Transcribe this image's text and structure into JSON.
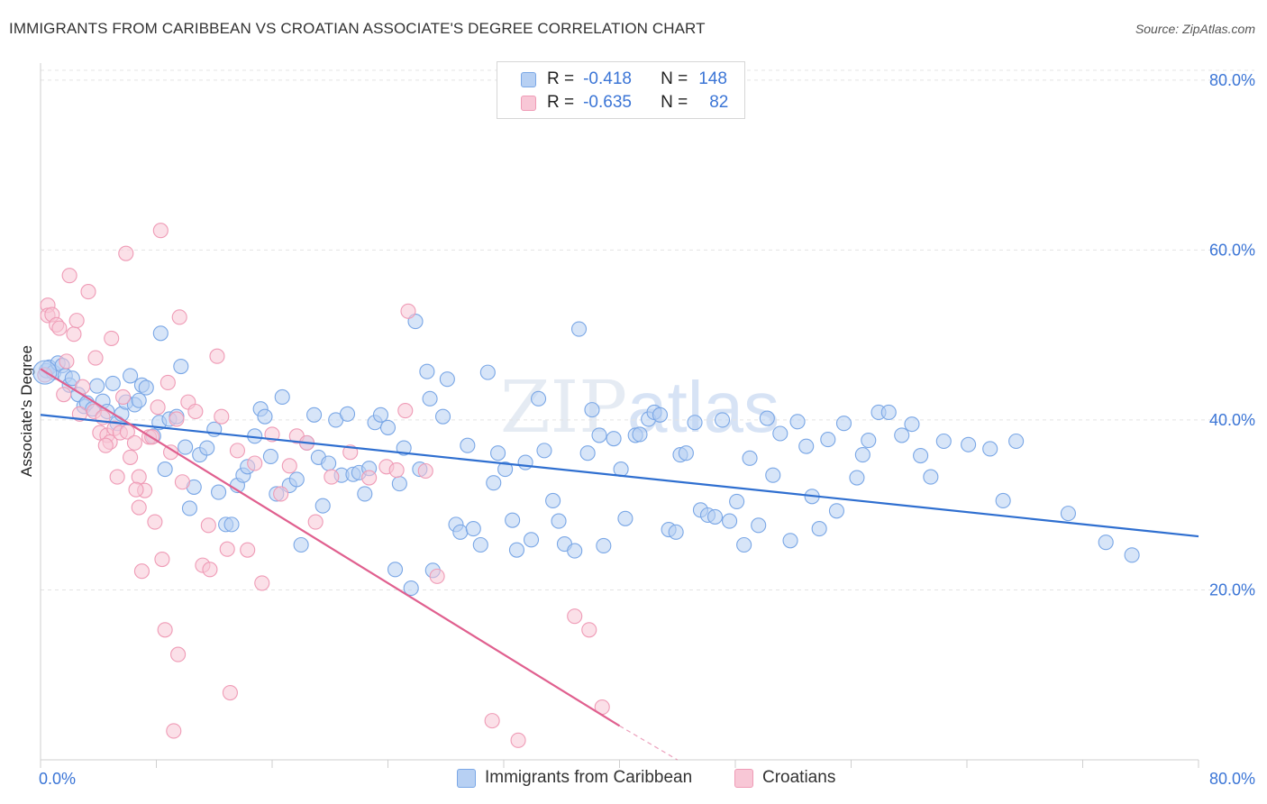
{
  "title": "IMMIGRANTS FROM CARIBBEAN VS CROATIAN ASSOCIATE'S DEGREE CORRELATION CHART",
  "source": "Source: ZipAtlas.com",
  "watermark": {
    "zip": "ZIP",
    "atlas": "atlas"
  },
  "legend": {
    "rows": [
      {
        "r_label": "R =",
        "r_value": "-0.418",
        "n_label": "N =",
        "n_value": "148"
      },
      {
        "r_label": "R =",
        "r_value": "-0.635",
        "n_label": "N =",
        "n_value": "82"
      }
    ]
  },
  "chart_data": {
    "type": "scatter",
    "title": "IMMIGRANTS FROM CARIBBEAN VS CROATIAN ASSOCIATE'S DEGREE CORRELATION CHART",
    "xlabel": "",
    "ylabel": "Associate's Degree",
    "xlim": [
      0,
      80
    ],
    "ylim": [
      0,
      82
    ],
    "x_tick_labels": [
      "0.0%",
      "80.0%"
    ],
    "y_ticks": [
      20,
      40,
      60,
      80
    ],
    "y_tick_labels": [
      "20.0%",
      "40.0%",
      "60.0%",
      "80.0%"
    ],
    "grid": true,
    "legend_position": "top-center",
    "series": [
      {
        "name": "Immigrants from Caribbean",
        "color": "#7aa7e6",
        "fill": "#b7d0f3",
        "line_color": "#2f6fd0",
        "r": -0.418,
        "n": 148,
        "trend": [
          [
            0,
            40.6
          ],
          [
            80,
            26.3
          ]
        ],
        "points": [
          [
            0.4,
            45.8
          ],
          [
            0.6,
            46.2
          ],
          [
            0.9,
            45.6
          ],
          [
            1.2,
            46.7
          ],
          [
            1.5,
            46.4
          ],
          [
            1.7,
            45.2
          ],
          [
            2.0,
            44.1
          ],
          [
            2.2,
            44.9
          ],
          [
            2.6,
            43.0
          ],
          [
            3.0,
            41.6
          ],
          [
            3.2,
            42.0
          ],
          [
            3.6,
            41.3
          ],
          [
            3.9,
            44.0
          ],
          [
            4.3,
            42.2
          ],
          [
            4.6,
            41.0
          ],
          [
            5.0,
            44.3
          ],
          [
            5.3,
            39.6
          ],
          [
            5.6,
            40.7
          ],
          [
            5.9,
            42.1
          ],
          [
            6.2,
            45.2
          ],
          [
            6.5,
            41.8
          ],
          [
            6.8,
            42.3
          ],
          [
            7.0,
            44.1
          ],
          [
            7.3,
            43.8
          ],
          [
            7.8,
            38.1
          ],
          [
            8.2,
            39.7
          ],
          [
            8.3,
            50.2
          ],
          [
            8.6,
            34.2
          ],
          [
            8.9,
            40.1
          ],
          [
            9.4,
            40.4
          ],
          [
            9.7,
            46.3
          ],
          [
            10.0,
            36.8
          ],
          [
            10.3,
            29.6
          ],
          [
            10.6,
            32.1
          ],
          [
            11.0,
            35.9
          ],
          [
            11.5,
            36.7
          ],
          [
            12.0,
            38.9
          ],
          [
            12.3,
            31.5
          ],
          [
            12.8,
            27.7
          ],
          [
            13.2,
            27.7
          ],
          [
            13.6,
            32.3
          ],
          [
            14.0,
            33.5
          ],
          [
            14.3,
            34.5
          ],
          [
            14.8,
            38.1
          ],
          [
            15.2,
            41.3
          ],
          [
            15.5,
            40.4
          ],
          [
            15.9,
            35.7
          ],
          [
            16.3,
            31.3
          ],
          [
            16.7,
            42.7
          ],
          [
            17.2,
            32.3
          ],
          [
            17.7,
            33.0
          ],
          [
            18.0,
            25.3
          ],
          [
            18.4,
            37.3
          ],
          [
            18.9,
            40.6
          ],
          [
            19.2,
            35.6
          ],
          [
            19.5,
            29.9
          ],
          [
            19.9,
            34.9
          ],
          [
            20.4,
            40.0
          ],
          [
            20.8,
            33.5
          ],
          [
            21.2,
            40.7
          ],
          [
            21.6,
            33.6
          ],
          [
            22.0,
            33.8
          ],
          [
            22.4,
            31.3
          ],
          [
            22.7,
            34.3
          ],
          [
            23.1,
            39.7
          ],
          [
            23.5,
            40.6
          ],
          [
            24.0,
            39.1
          ],
          [
            24.5,
            22.4
          ],
          [
            24.8,
            32.5
          ],
          [
            25.1,
            36.7
          ],
          [
            25.6,
            20.2
          ],
          [
            25.9,
            51.6
          ],
          [
            26.2,
            34.2
          ],
          [
            26.7,
            45.7
          ],
          [
            26.9,
            42.5
          ],
          [
            27.1,
            22.3
          ],
          [
            27.8,
            40.4
          ],
          [
            28.1,
            44.8
          ],
          [
            28.7,
            27.7
          ],
          [
            29.0,
            26.8
          ],
          [
            29.5,
            37.0
          ],
          [
            29.9,
            27.2
          ],
          [
            30.4,
            25.3
          ],
          [
            30.9,
            45.6
          ],
          [
            31.3,
            32.6
          ],
          [
            31.6,
            36.1
          ],
          [
            32.1,
            34.2
          ],
          [
            32.6,
            28.2
          ],
          [
            32.9,
            24.7
          ],
          [
            33.5,
            35.0
          ],
          [
            33.9,
            25.9
          ],
          [
            34.4,
            42.5
          ],
          [
            34.8,
            36.4
          ],
          [
            35.4,
            30.5
          ],
          [
            35.8,
            28.1
          ],
          [
            36.2,
            25.4
          ],
          [
            36.9,
            24.6
          ],
          [
            37.2,
            50.7
          ],
          [
            37.8,
            36.1
          ],
          [
            38.1,
            41.2
          ],
          [
            38.6,
            38.2
          ],
          [
            38.9,
            25.2
          ],
          [
            39.6,
            37.8
          ],
          [
            40.1,
            34.2
          ],
          [
            40.4,
            28.4
          ],
          [
            41.1,
            38.2
          ],
          [
            41.4,
            38.3
          ],
          [
            42.0,
            40.1
          ],
          [
            42.4,
            40.9
          ],
          [
            42.8,
            40.6
          ],
          [
            43.4,
            27.1
          ],
          [
            43.9,
            26.8
          ],
          [
            44.2,
            35.9
          ],
          [
            44.6,
            36.1
          ],
          [
            45.2,
            39.7
          ],
          [
            45.6,
            29.4
          ],
          [
            46.1,
            28.8
          ],
          [
            46.6,
            28.6
          ],
          [
            47.1,
            40.0
          ],
          [
            47.6,
            28.1
          ],
          [
            48.1,
            30.4
          ],
          [
            48.6,
            25.3
          ],
          [
            49.0,
            35.5
          ],
          [
            49.6,
            27.6
          ],
          [
            50.2,
            40.2
          ],
          [
            50.6,
            33.5
          ],
          [
            51.1,
            38.4
          ],
          [
            51.8,
            25.8
          ],
          [
            52.3,
            39.8
          ],
          [
            52.9,
            36.9
          ],
          [
            53.3,
            31.0
          ],
          [
            53.8,
            27.2
          ],
          [
            54.4,
            37.7
          ],
          [
            55.0,
            29.3
          ],
          [
            55.5,
            39.6
          ],
          [
            56.4,
            33.2
          ],
          [
            56.8,
            35.9
          ],
          [
            57.2,
            37.6
          ],
          [
            57.9,
            40.9
          ],
          [
            58.6,
            40.9
          ],
          [
            59.5,
            38.2
          ],
          [
            60.2,
            39.5
          ],
          [
            60.8,
            35.8
          ],
          [
            61.5,
            33.3
          ],
          [
            62.4,
            37.5
          ],
          [
            64.1,
            37.1
          ],
          [
            65.6,
            36.6
          ],
          [
            66.5,
            30.5
          ],
          [
            67.4,
            37.5
          ],
          [
            71.0,
            29.0
          ],
          [
            73.6,
            25.6
          ],
          [
            75.4,
            24.1
          ]
        ]
      },
      {
        "name": "Croatians",
        "color": "#ef9bb6",
        "fill": "#f8c7d6",
        "line_color": "#e0608f",
        "r": -0.635,
        "n": 82,
        "trend": [
          [
            0,
            46.0
          ],
          [
            40,
            4.0
          ]
        ],
        "trend_dashed_to": [
          44,
          0.0
        ],
        "points": [
          [
            0.3,
            45.3
          ],
          [
            0.5,
            53.5
          ],
          [
            0.5,
            52.3
          ],
          [
            0.8,
            52.4
          ],
          [
            1.1,
            51.2
          ],
          [
            1.3,
            50.8
          ],
          [
            1.6,
            43.0
          ],
          [
            1.8,
            46.9
          ],
          [
            2.0,
            57.0
          ],
          [
            2.3,
            50.1
          ],
          [
            2.5,
            51.7
          ],
          [
            2.7,
            40.7
          ],
          [
            2.9,
            43.9
          ],
          [
            3.3,
            55.1
          ],
          [
            3.7,
            41.0
          ],
          [
            3.8,
            47.3
          ],
          [
            4.1,
            38.5
          ],
          [
            4.3,
            40.3
          ],
          [
            4.6,
            38.2
          ],
          [
            4.8,
            37.4
          ],
          [
            4.9,
            49.6
          ],
          [
            5.1,
            39.0
          ],
          [
            5.3,
            33.3
          ],
          [
            5.5,
            38.5
          ],
          [
            5.7,
            42.7
          ],
          [
            5.9,
            59.6
          ],
          [
            6.0,
            38.6
          ],
          [
            6.2,
            35.6
          ],
          [
            6.5,
            37.3
          ],
          [
            6.8,
            33.3
          ],
          [
            6.8,
            29.7
          ],
          [
            7.0,
            22.2
          ],
          [
            7.2,
            31.7
          ],
          [
            7.5,
            38.0
          ],
          [
            7.7,
            38.0
          ],
          [
            7.9,
            28.0
          ],
          [
            8.1,
            41.5
          ],
          [
            8.3,
            62.3
          ],
          [
            8.4,
            23.6
          ],
          [
            8.6,
            15.3
          ],
          [
            8.8,
            44.4
          ],
          [
            9.0,
            36.2
          ],
          [
            9.2,
            3.4
          ],
          [
            9.4,
            40.1
          ],
          [
            9.5,
            12.4
          ],
          [
            9.6,
            52.1
          ],
          [
            9.8,
            32.7
          ],
          [
            10.2,
            42.1
          ],
          [
            10.7,
            41.0
          ],
          [
            11.2,
            22.9
          ],
          [
            11.6,
            27.6
          ],
          [
            11.7,
            22.4
          ],
          [
            12.2,
            47.5
          ],
          [
            12.5,
            40.4
          ],
          [
            12.9,
            24.8
          ],
          [
            13.1,
            7.9
          ],
          [
            13.6,
            36.4
          ],
          [
            14.3,
            24.7
          ],
          [
            14.8,
            34.9
          ],
          [
            15.3,
            20.8
          ],
          [
            16.0,
            38.3
          ],
          [
            16.6,
            31.3
          ],
          [
            17.2,
            34.6
          ],
          [
            17.7,
            38.1
          ],
          [
            18.4,
            37.3
          ],
          [
            19.0,
            28.0
          ],
          [
            20.1,
            33.3
          ],
          [
            21.4,
            36.2
          ],
          [
            22.7,
            33.2
          ],
          [
            23.9,
            34.5
          ],
          [
            24.6,
            34.1
          ],
          [
            25.2,
            41.1
          ],
          [
            25.4,
            52.8
          ],
          [
            26.6,
            34.0
          ],
          [
            27.4,
            21.6
          ],
          [
            31.2,
            4.6
          ],
          [
            33.0,
            2.3
          ],
          [
            36.9,
            16.9
          ],
          [
            37.9,
            15.3
          ],
          [
            38.8,
            6.2
          ],
          [
            6.6,
            31.8
          ],
          [
            4.5,
            37.0
          ]
        ]
      }
    ]
  },
  "bottom_legend": [
    {
      "label": "Immigrants from Caribbean"
    },
    {
      "label": "Croatians"
    }
  ]
}
